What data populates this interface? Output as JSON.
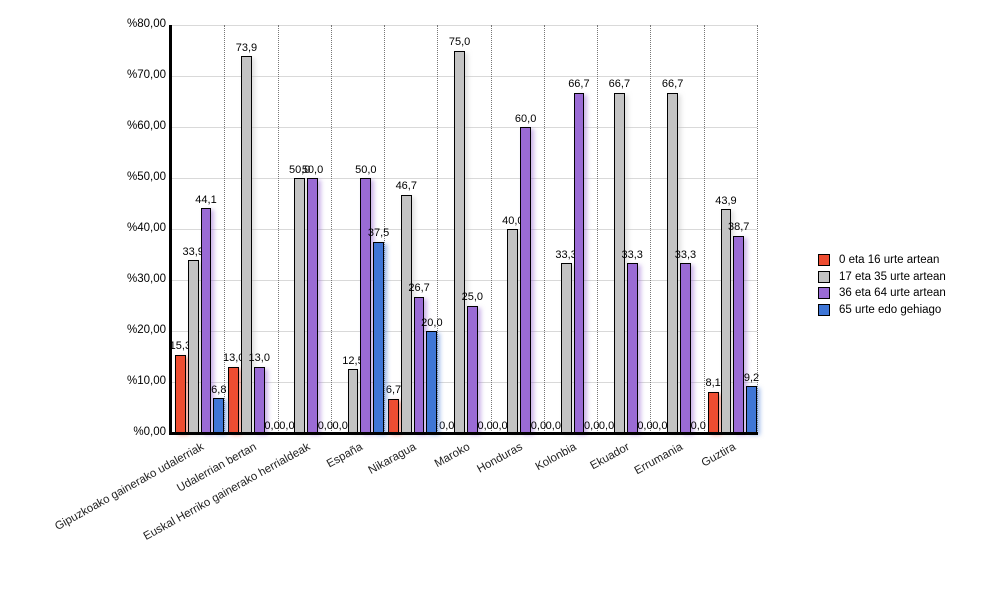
{
  "chart_data": {
    "type": "bar",
    "title": "",
    "background": "#FFFFFF",
    "axis_color": "#000000",
    "grid": {
      "horizontal": "solid-light-gray",
      "vertical": "dotted"
    },
    "legend": {
      "position": "right"
    },
    "categories": [
      "Gipuzkoako gainerako udalerriak",
      "Udalerrian bertan",
      "Euskal Herriko gainerako herrialdeak",
      "España",
      "Nikaragua",
      "Maroko",
      "Honduras",
      "Kolonbia",
      "Ekuador",
      "Errumania",
      "Guztira"
    ],
    "series": [
      {
        "name": "0 eta 16 urte artean",
        "color": "#EE4D31",
        "values": [
          15.3,
          13.0,
          0.0,
          0.0,
          6.7,
          0.0,
          0.0,
          0.0,
          0.0,
          0.0,
          8.1
        ],
        "labels": [
          "15,3",
          "13,0",
          "0,0",
          "0,0",
          "6,7",
          "0,0",
          "0,0",
          "0,0",
          "0,0",
          "0,0",
          "8,1"
        ]
      },
      {
        "name": "17 eta 35 urte artean",
        "color": "#C3C3C3",
        "values": [
          33.9,
          73.9,
          50.0,
          12.5,
          46.7,
          75.0,
          40.0,
          33.3,
          66.7,
          66.7,
          43.9
        ],
        "labels": [
          "33,9",
          "73,9",
          "50,0",
          "12,5",
          "46,7",
          "75,0",
          "40,0",
          "33,3",
          "66,7",
          "66,7",
          "43,9"
        ]
      },
      {
        "name": "36 eta 64 urte artean",
        "color": "#9A6BD5",
        "values": [
          44.1,
          13.0,
          50.0,
          50.0,
          26.7,
          25.0,
          60.0,
          66.7,
          33.3,
          33.3,
          38.7
        ],
        "labels": [
          "44,1",
          "13,0",
          "50,0",
          "50,0",
          "26,7",
          "25,0",
          "60,0",
          "66,7",
          "33,3",
          "33,3",
          "38,7"
        ]
      },
      {
        "name": "65 urte edo gehiago",
        "color": "#3F76D6",
        "values": [
          6.8,
          0.0,
          0.0,
          37.5,
          20.0,
          0.0,
          0.0,
          0.0,
          0.0,
          0.0,
          9.2
        ],
        "labels": [
          "6,8",
          "0,0",
          "0,0",
          "37,5",
          "20,0",
          "0,0",
          "0,0",
          "0,0",
          "0,0",
          "0,0",
          "9,2"
        ]
      }
    ],
    "y_axis": {
      "min": 0,
      "max": 80,
      "step": 10,
      "tick_labels": [
        "%80,00",
        "%70,00",
        "%60,00",
        "%50,00",
        "%40,00",
        "%30,00",
        "%20,00",
        "%10,00",
        "%0,00"
      ]
    }
  }
}
